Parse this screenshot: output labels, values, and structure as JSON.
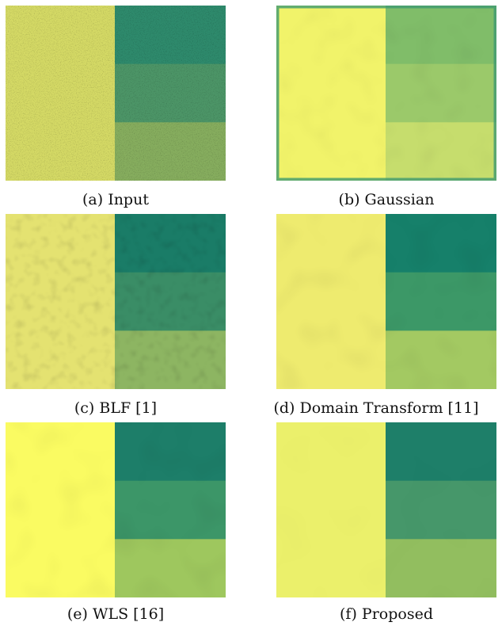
{
  "figure": {
    "panels": [
      {
        "id": "a",
        "caption": "(a) Input",
        "left_color": "#d4d965",
        "blocks": [
          "#2e8a6c",
          "#4c9567",
          "#86ad5e"
        ],
        "texture": "strong-noise",
        "border": false
      },
      {
        "id": "b",
        "caption": "(b) Gaussian",
        "left_color": "#f1f36a",
        "blocks": [
          "#80bd69",
          "#9bc96a",
          "#c6dd6d"
        ],
        "texture": "blur",
        "border": true
      },
      {
        "id": "c",
        "caption": "(c) BLF [1]",
        "left_color": "#e4e271",
        "blocks": [
          "#1a7c67",
          "#3a8d66",
          "#8db562"
        ],
        "texture": "blotchy",
        "border": false
      },
      {
        "id": "d",
        "caption": "(d) Domain Transform [11]",
        "left_color": "#eeeb6f",
        "blocks": [
          "#16806a",
          "#3c9867",
          "#a3c962"
        ],
        "texture": "smooth-gradient",
        "border": false
      },
      {
        "id": "e",
        "caption": "(e) WLS [16]",
        "left_color": "#fafb62",
        "blocks": [
          "#1d7e69",
          "#3c9668",
          "#9ec75e"
        ],
        "texture": "smooth-gradient",
        "border": false
      },
      {
        "id": "f",
        "caption": "(f) Proposed",
        "left_color": "#ebf06b",
        "blocks": [
          "#1e7f69",
          "#46976a",
          "#92be5f"
        ],
        "texture": "clean",
        "border": false
      }
    ]
  }
}
